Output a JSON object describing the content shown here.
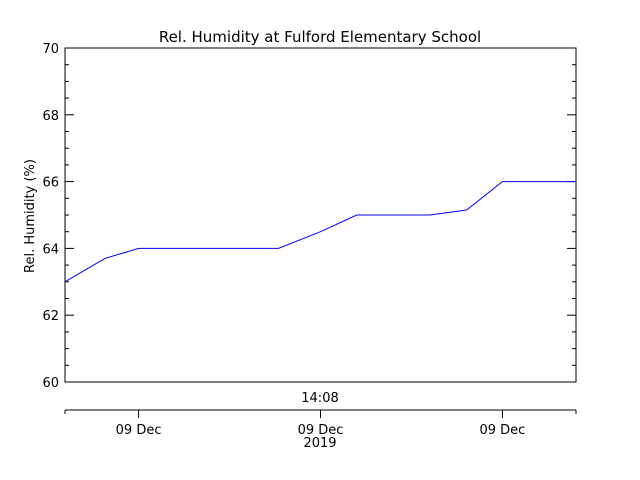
{
  "chart_data": {
    "type": "line",
    "title": "Rel. Humidity at Fulford Elementary School",
    "ylabel": "Rel. Humidity (%)",
    "ylim": [
      60,
      70
    ],
    "y_major_ticks": [
      60,
      62,
      64,
      66,
      68,
      70
    ],
    "y_tick_labels": [
      "60",
      "62",
      "64",
      "66",
      "68",
      "70"
    ],
    "y_minor_step": 0.5,
    "grid": false,
    "top_time_label": "14:08",
    "x_tick_labels": [
      "09 Dec",
      "09 Dec",
      "09 Dec"
    ],
    "x_year_label": "2019",
    "x_range": [
      0,
      1
    ],
    "x_major_ticks": [
      0.144,
      0.5,
      0.856
    ],
    "series": [
      {
        "x": [
          0.0,
          0.078,
          0.144,
          0.238,
          0.323,
          0.418,
          0.5,
          0.571,
          0.643,
          0.714,
          0.786,
          0.856,
          0.929,
          1.0
        ],
        "values": [
          63.0,
          63.7,
          64.0,
          64.0,
          64.0,
          64.0,
          64.5,
          65.0,
          65.0,
          65.0,
          65.15,
          66.0,
          66.0,
          66.0
        ],
        "color": "#0000ff"
      }
    ]
  }
}
